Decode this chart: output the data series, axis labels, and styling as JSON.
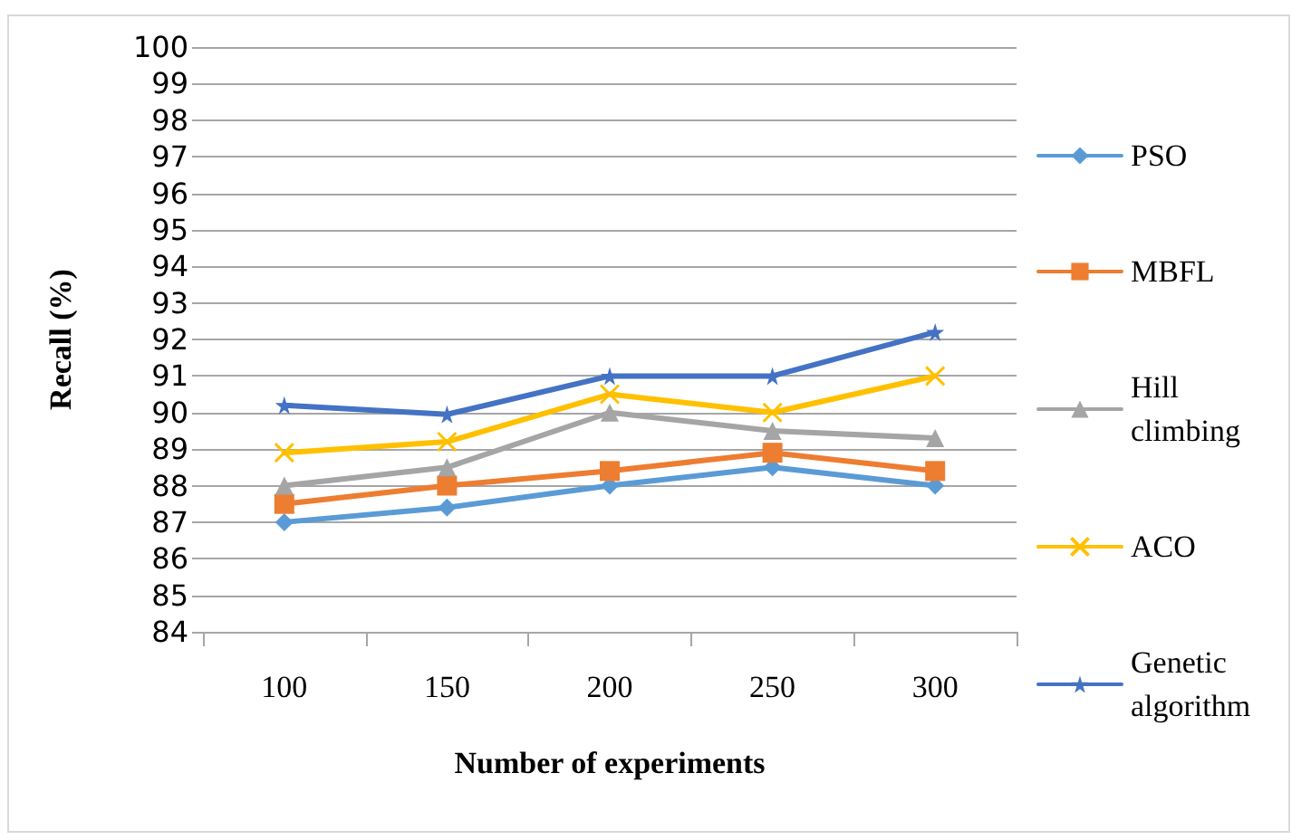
{
  "chart_data": {
    "type": "line",
    "xlabel": "Number of experiments",
    "ylabel": "Recall (%)",
    "categories": [
      "100",
      "150",
      "200",
      "250",
      "300"
    ],
    "series": [
      {
        "name": "PSO",
        "color": "#5b9bd5",
        "marker": "diamond",
        "values": [
          87,
          87.4,
          88,
          88.5,
          88
        ]
      },
      {
        "name": "MBFL",
        "color": "#ed7d31",
        "marker": "square",
        "values": [
          87.5,
          88,
          88.4,
          88.9,
          88.4
        ]
      },
      {
        "name": "Hill climbing",
        "color": "#a5a5a5",
        "marker": "triangle",
        "values": [
          88,
          88.5,
          90,
          89.5,
          89.3
        ]
      },
      {
        "name": "ACO",
        "color": "#ffc000",
        "marker": "cross",
        "values": [
          88.9,
          89.2,
          90.5,
          90,
          91
        ]
      },
      {
        "name": "Genetic algorithm",
        "color": "#4472c4",
        "marker": "star",
        "values": [
          90.2,
          89.95,
          91,
          91,
          92.2
        ]
      }
    ],
    "ylim": [
      84,
      100
    ],
    "yticks": [
      84,
      85,
      86,
      87,
      88,
      89,
      90,
      91,
      92,
      93,
      94,
      95,
      96,
      97,
      98,
      99,
      100
    ],
    "grid": "y",
    "legend": "right"
  }
}
